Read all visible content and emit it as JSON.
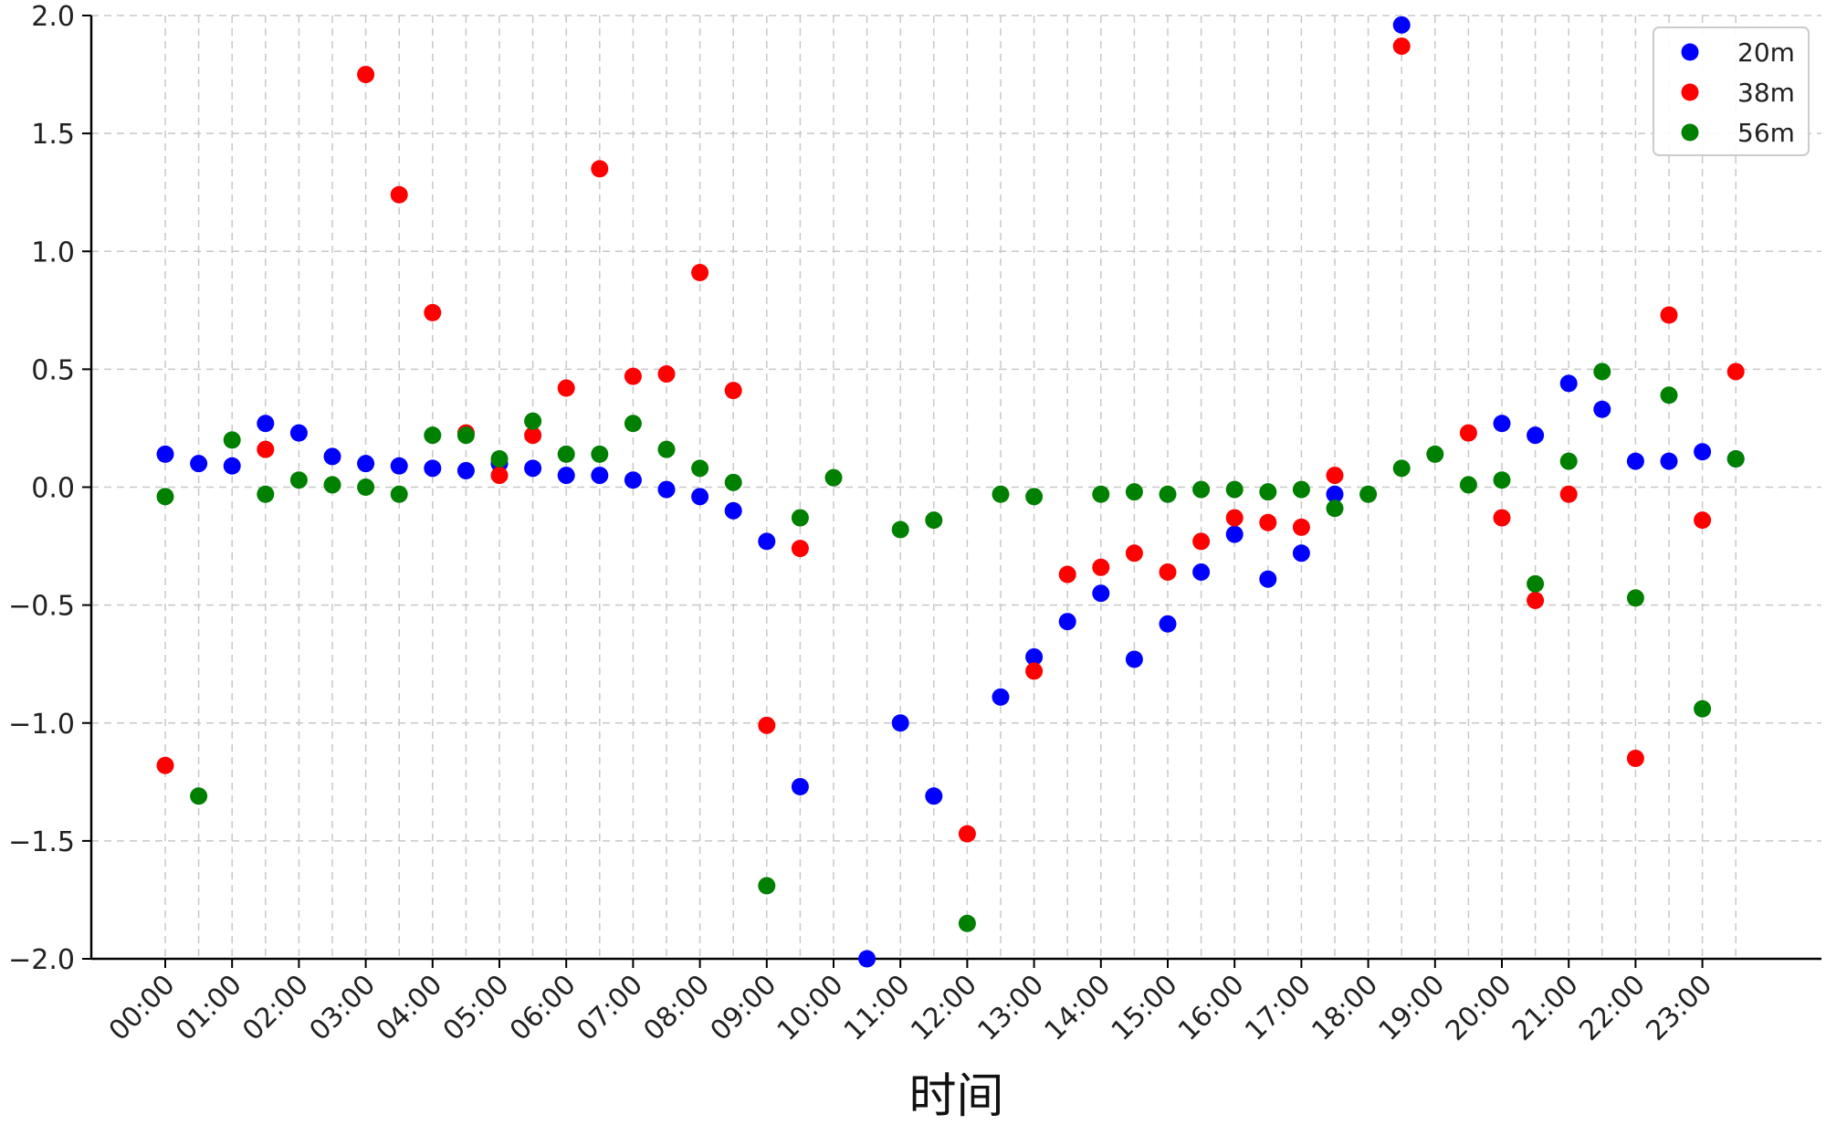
{
  "chart_data": {
    "type": "scatter",
    "title": "",
    "xlabel": "时间",
    "ylabel": "",
    "ylim": [
      -2.0,
      2.0
    ],
    "yticks": [
      -2.0,
      -1.5,
      -1.0,
      -0.5,
      0.0,
      0.5,
      1.0,
      1.5,
      2.0
    ],
    "ytick_labels": [
      "−2.0",
      "−1.5",
      "−1.0",
      "−0.5",
      "0.0",
      "0.5",
      "1.0",
      "1.5",
      "2.0"
    ],
    "xtick_labels": [
      "00:00",
      "01:00",
      "02:00",
      "03:00",
      "04:00",
      "05:00",
      "06:00",
      "07:00",
      "08:00",
      "09:00",
      "10:00",
      "11:00",
      "12:00",
      "13:00",
      "14:00",
      "15:00",
      "16:00",
      "17:00",
      "18:00",
      "19:00",
      "20:00",
      "21:00",
      "22:00",
      "23:00"
    ],
    "x": [
      "00:00",
      "00:30",
      "01:00",
      "01:30",
      "02:00",
      "02:30",
      "03:00",
      "03:30",
      "04:00",
      "04:30",
      "05:00",
      "05:30",
      "06:00",
      "06:30",
      "07:00",
      "07:30",
      "08:00",
      "08:30",
      "09:00",
      "09:30",
      "10:00",
      "10:30",
      "11:00",
      "11:30",
      "12:00",
      "12:30",
      "13:00",
      "13:30",
      "14:00",
      "14:30",
      "15:00",
      "15:30",
      "16:00",
      "16:30",
      "17:00",
      "17:30",
      "18:00",
      "18:30",
      "19:00",
      "19:30",
      "20:00",
      "20:30",
      "21:00",
      "21:30",
      "22:00",
      "22:30",
      "23:00",
      "23:30"
    ],
    "grid": true,
    "legend_position": "top-right",
    "series": [
      {
        "name": "20m",
        "color": "#0000ff",
        "values": [
          0.14,
          0.1,
          0.09,
          0.27,
          0.23,
          0.13,
          0.1,
          0.09,
          0.08,
          0.07,
          0.1,
          0.08,
          0.05,
          0.05,
          0.03,
          -0.01,
          -0.04,
          -0.1,
          -0.23,
          -1.27,
          null,
          -2.0,
          -1.0,
          -1.31,
          null,
          -0.89,
          -0.72,
          -0.57,
          -0.45,
          -0.73,
          -0.58,
          -0.36,
          -0.2,
          -0.39,
          -0.28,
          -0.03,
          null,
          1.96,
          null,
          null,
          0.27,
          0.22,
          0.44,
          0.33,
          0.11,
          0.11,
          0.15,
          0.12
        ]
      },
      {
        "name": "38m",
        "color": "#ff0000",
        "values": [
          -1.18,
          null,
          null,
          0.16,
          null,
          null,
          1.75,
          1.24,
          0.74,
          0.23,
          0.05,
          0.22,
          0.42,
          1.35,
          0.47,
          0.48,
          0.91,
          0.41,
          -1.01,
          -0.26,
          null,
          null,
          null,
          null,
          -1.47,
          null,
          -0.78,
          -0.37,
          -0.34,
          -0.28,
          -0.36,
          -0.23,
          -0.13,
          -0.15,
          -0.17,
          0.05,
          null,
          1.87,
          null,
          0.23,
          -0.13,
          -0.48,
          -0.03,
          null,
          -1.15,
          0.73,
          -0.14,
          0.49
        ]
      },
      {
        "name": "56m",
        "color": "#008000",
        "values": [
          -0.04,
          -1.31,
          0.2,
          -0.03,
          0.03,
          0.01,
          0.0,
          -0.03,
          0.22,
          0.22,
          0.12,
          0.28,
          0.14,
          0.14,
          0.27,
          0.16,
          0.08,
          0.02,
          -1.69,
          -0.13,
          0.04,
          null,
          -0.18,
          -0.14,
          -1.85,
          -0.03,
          -0.04,
          null,
          -0.03,
          -0.02,
          -0.03,
          -0.01,
          -0.01,
          -0.02,
          -0.01,
          -0.09,
          -0.03,
          0.08,
          0.14,
          0.01,
          0.03,
          -0.41,
          0.11,
          0.49,
          -0.47,
          0.39,
          -0.94,
          0.12
        ]
      }
    ]
  }
}
